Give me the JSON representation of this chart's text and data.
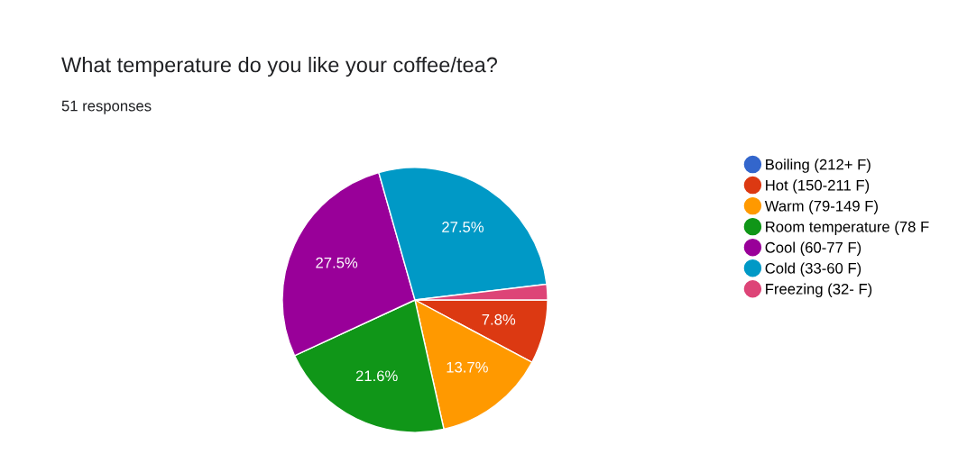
{
  "chart_data": {
    "type": "pie",
    "title": "What temperature do you like your coffee/tea?",
    "subtitle": "51 responses",
    "categories": [
      "Boiling (212+ F)",
      "Hot (150-211 F)",
      "Warm (79-149 F)",
      "Room temperature (78 F",
      "Cool (60-77 F)",
      "Cold (33-60 F)",
      "Freezing (32- F)"
    ],
    "values": [
      0,
      7.8,
      13.7,
      21.6,
      27.5,
      27.5,
      1.9
    ],
    "colors": [
      "#3366cc",
      "#dc3912",
      "#ff9900",
      "#109618",
      "#990099",
      "#0099c6",
      "#dd4477"
    ],
    "value_labels": [
      null,
      "7.8%",
      "13.7%",
      "21.6%",
      "27.5%",
      "27.5%",
      null
    ],
    "legend": "right"
  }
}
